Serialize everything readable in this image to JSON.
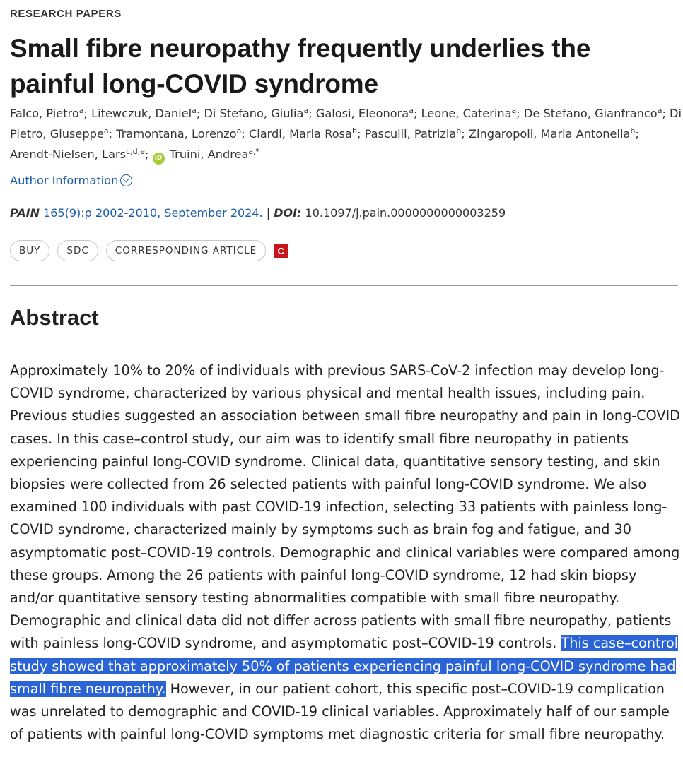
{
  "section_label": "RESEARCH PAPERS",
  "title": "Small fibre neuropathy frequently underlies the painful long-COVID syndrome",
  "authors": [
    {
      "name": "Falco, Pietro",
      "aff": "a"
    },
    {
      "name": "Litewczuk, Daniel",
      "aff": "a"
    },
    {
      "name": "Di Stefano, Giulia",
      "aff": "a"
    },
    {
      "name": "Galosi, Eleonora",
      "aff": "a"
    },
    {
      "name": "Leone, Caterina",
      "aff": "a"
    },
    {
      "name": "De Stefano, Gianfranco",
      "aff": "a"
    },
    {
      "name": "Di Pietro, Giuseppe",
      "aff": "a"
    },
    {
      "name": "Tramontana, Lorenzo",
      "aff": "a"
    },
    {
      "name": "Ciardi, Maria Rosa",
      "aff": "b"
    },
    {
      "name": "Pasculli, Patrizia",
      "aff": "b"
    },
    {
      "name": "Zingaropoli, Maria Antonella",
      "aff": "b"
    },
    {
      "name": "Arendt-Nielsen, Lars",
      "aff": "c,d,e"
    },
    {
      "name": "Truini, Andrea",
      "aff": "a,*",
      "orcid": true
    }
  ],
  "orcid_label": "iD",
  "author_info_label": "Author Information",
  "citation": {
    "journal": "PAIN",
    "volume_pages_date": "165(9):p 2002-2010, September 2024.",
    "separator": "|",
    "doi_label": "DOI:",
    "doi": "10.1097/j.pain.0000000000003259"
  },
  "buttons": {
    "buy": "BUY",
    "sdc": "SDC",
    "corresponding": "CORRESPONDING ARTICLE",
    "crossmark": "C"
  },
  "abstract": {
    "heading": "Abstract",
    "before_highlight": "Approximately 10% to 20% of individuals with previous SARS-CoV-2 infection may develop long-COVID syndrome, characterized by various physical and mental health issues, including pain. Previous studies suggested an association between small fibre neuropathy and pain in long-COVID cases. In this case–control study, our aim was to identify small fibre neuropathy in patients experiencing painful long-COVID syndrome. Clinical data, quantitative sensory testing, and skin biopsies were collected from 26 selected patients with painful long-COVID syndrome. We also examined 100 individuals with past COVID-19 infection, selecting 33 patients with painless long-COVID syndrome, characterized mainly by symptoms such as brain fog and fatigue, and 30 asymptomatic post–COVID-19 controls. Demographic and clinical variables were compared among these groups. Among the 26 patients with painful long-COVID syndrome, 12 had skin biopsy and/or quantitative sensory testing abnormalities compatible with small fibre neuropathy. Demographic and clinical data did not differ across patients with small fibre neuropathy, patients with painless long-COVID syndrome, and asymptomatic post–COVID-19 controls. ",
    "highlight": "This case–control study showed that approximately 50% of patients experiencing painful long-COVID syndrome had small fibre neuropathy.",
    "after_highlight": " However, in our patient cohort, this specific post–COVID-19 complication was unrelated to demographic and COVID-19 clinical variables. Approximately half of our sample of patients with painful long-COVID symptoms met diagnostic criteria for small fibre neuropathy."
  },
  "colors": {
    "link": "#1b5ea8",
    "highlight": "#2a63d6",
    "crossmark": "#c4161c",
    "orcid": "#a6ce39"
  }
}
